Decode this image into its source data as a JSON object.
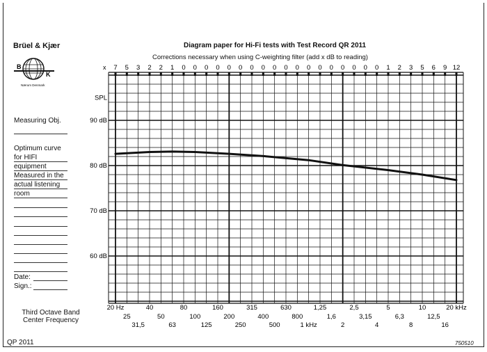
{
  "header": {
    "brand": "Brüel & Kjær",
    "logo_text": "B K Nærum Denmark",
    "title": "Diagram paper for Hi-Fi tests with Test Record QR 2011",
    "subtitle": "Corrections necessary when using C-weighting filter (add x dB  to reading)"
  },
  "left_panel": {
    "measuring_obj": "Measuring Obj.",
    "notes": [
      "Optimum curve",
      "for HIFI",
      "equipment",
      "Measured in the",
      "actual listening",
      "room"
    ],
    "date": "Date:",
    "sign": "Sign.:",
    "axis_caption": [
      "Third Octave Band",
      "Center Frequency"
    ]
  },
  "footer": {
    "left": "QP 2011",
    "right": "750510"
  },
  "chart_data": {
    "type": "line",
    "title": "Diagram paper for Hi-Fi tests with Test Record QR 2011",
    "xlabel": "Third Octave Band Center Frequency",
    "ylabel": "SPL",
    "xscale": "log",
    "xlim": [
      "20 Hz",
      "20 kHz"
    ],
    "ylim": [
      50,
      100
    ],
    "grid": true,
    "correction_label": "x",
    "corrections_db": [
      7,
      5,
      3,
      2,
      2,
      1,
      0,
      0,
      0,
      0,
      0,
      0,
      0,
      0,
      0,
      0,
      0,
      0,
      0,
      0,
      0,
      0,
      0,
      0,
      1,
      2,
      3,
      5,
      6,
      9,
      12
    ],
    "x_tick_labels": [
      "20 Hz",
      "25",
      "31,5",
      "40",
      "50",
      "63",
      "80",
      "100",
      "125",
      "160",
      "200",
      "250",
      "315",
      "400",
      "500",
      "630",
      "800",
      "1 kHz",
      "1,25",
      "1,6",
      "2",
      "2,5",
      "3,15",
      "4",
      "5",
      "6,3",
      "8",
      "10",
      "12,5",
      "16",
      "20 kHz"
    ],
    "y_tick_labels": [
      {
        "value": 95,
        "label": "SPL"
      },
      {
        "value": 90,
        "label": "90 dB"
      },
      {
        "value": 80,
        "label": "80 dB"
      },
      {
        "value": 70,
        "label": "70 dB"
      },
      {
        "value": 60,
        "label": "60 dB"
      }
    ],
    "series": [
      {
        "x_hz": [
          20,
          40,
          63,
          100,
          200,
          400,
          1000,
          2000,
          5000,
          10000,
          20000
        ],
        "y_db": [
          82.6,
          83.0,
          83.1,
          83.0,
          82.6,
          82.1,
          81.2,
          80.1,
          79.0,
          78.0,
          76.8
        ]
      }
    ],
    "line_color": "#111111"
  }
}
